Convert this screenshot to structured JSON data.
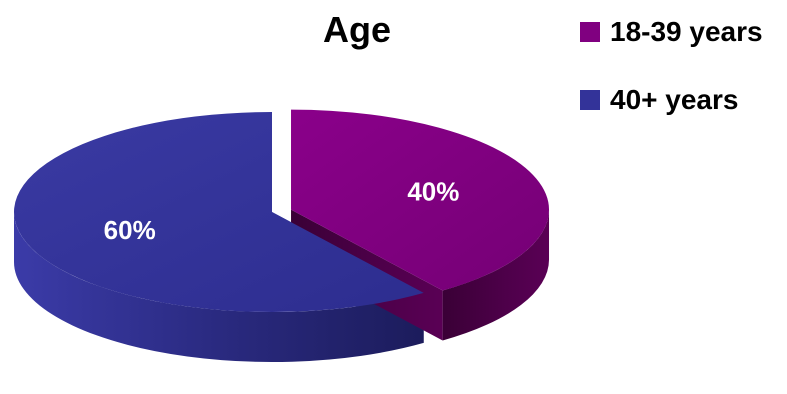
{
  "chart_data": {
    "type": "pie",
    "title": "Age",
    "categories": [
      "18-39 years",
      "40+ years"
    ],
    "values": [
      40,
      60
    ],
    "value_labels": [
      "40%",
      "60%"
    ],
    "legend_position": "top-right",
    "style": "3d-exploded",
    "colors": {
      "18-39 years": {
        "top": "#800080",
        "side": "#4a0046"
      },
      "40+ years": {
        "top": "#333399",
        "side": "#22226e"
      }
    }
  }
}
